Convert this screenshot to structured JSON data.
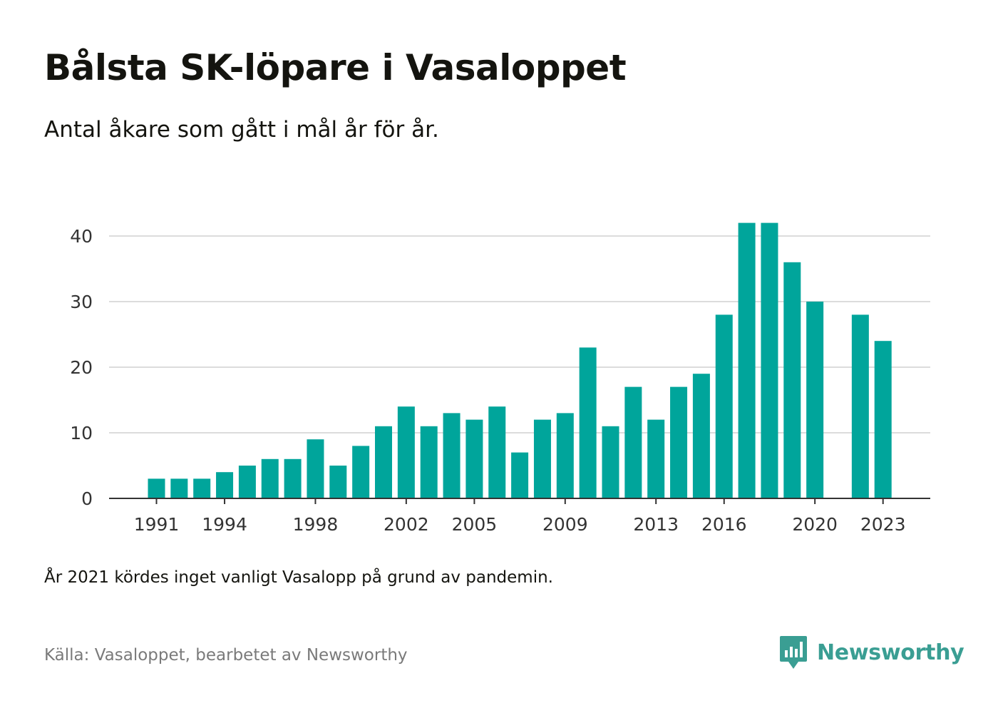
{
  "title": "Bålsta SK-löpare i Vasaloppet",
  "subtitle": "Antal åkare som gått i mål år för år.",
  "note": "År 2021 kördes inget vanligt Vasalopp på grund av pandemin.",
  "source": "Källa: Vasaloppet, bearbetet av Newsworthy",
  "brand": {
    "name": "Newsworthy",
    "icon": "newsworthy-logo-icon",
    "color": "#3a9e93"
  },
  "chart_data": {
    "type": "bar",
    "bar_color": "#00a59b",
    "grid": true,
    "ylim": [
      0,
      42
    ],
    "yticks": [
      0,
      10,
      20,
      30,
      40
    ],
    "xtick_labels": [
      "1991",
      "1994",
      "1998",
      "2002",
      "2005",
      "2009",
      "2013",
      "2016",
      "2020",
      "2023"
    ],
    "categories": [
      1991,
      1992,
      1993,
      1994,
      1995,
      1996,
      1997,
      1998,
      1999,
      2000,
      2001,
      2002,
      2003,
      2004,
      2005,
      2006,
      2007,
      2008,
      2009,
      2010,
      2011,
      2012,
      2013,
      2014,
      2015,
      2016,
      2017,
      2018,
      2019,
      2020,
      2021,
      2022,
      2023
    ],
    "values": [
      3,
      3,
      3,
      4,
      5,
      6,
      6,
      9,
      5,
      8,
      11,
      14,
      11,
      13,
      12,
      14,
      7,
      12,
      13,
      23,
      11,
      17,
      12,
      17,
      19,
      28,
      42,
      42,
      36,
      30,
      null,
      28,
      24
    ],
    "xlabel": "",
    "ylabel": ""
  }
}
